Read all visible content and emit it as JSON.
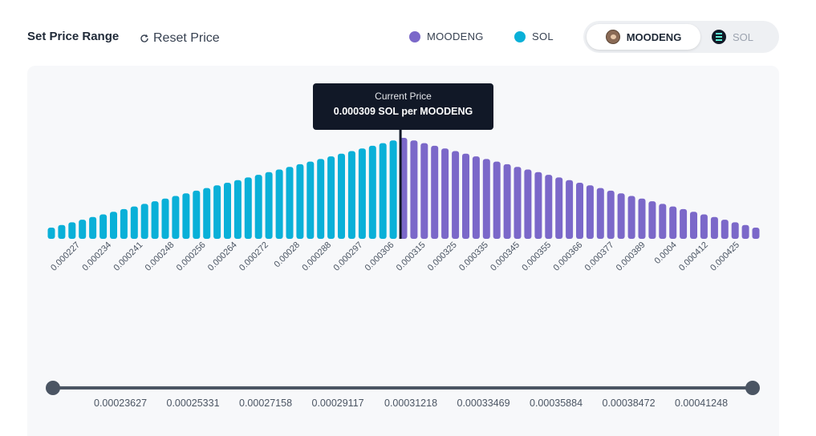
{
  "header": {
    "title": "Set Price Range",
    "reset_label": "Reset Price"
  },
  "legend": [
    {
      "name": "MOODENG",
      "color": "#7b68c9"
    },
    {
      "name": "SOL",
      "color": "#0ab0d8"
    }
  ],
  "toggle": {
    "active": "MOODENG",
    "inactive": "SOL"
  },
  "tooltip": {
    "title": "Current Price",
    "value": "0.000309 SOL per MOODENG"
  },
  "chart_data": {
    "type": "bar",
    "sol_color": "#0ab0d8",
    "moodeng_color": "#7b68c9",
    "current_price": 0.000309,
    "bar_count": 69,
    "peak_index": 34,
    "tick_labels": [
      "0.000227",
      "0.000234",
      "0.000241",
      "0.000248",
      "0.000256",
      "0.000264",
      "0.000272",
      "0.00028",
      "0.000288",
      "0.000297",
      "0.000306",
      "0.000315",
      "0.000325",
      "0.000335",
      "0.000345",
      "0.000355",
      "0.000366",
      "0.000377",
      "0.000389",
      "0.0004",
      "0.000412",
      "0.000425"
    ]
  },
  "slider": {
    "labels": [
      "0.00023627",
      "0.00025331",
      "0.00027158",
      "0.00029117",
      "0.00031218",
      "0.00033469",
      "0.00035884",
      "0.00038472",
      "0.00041248"
    ]
  }
}
